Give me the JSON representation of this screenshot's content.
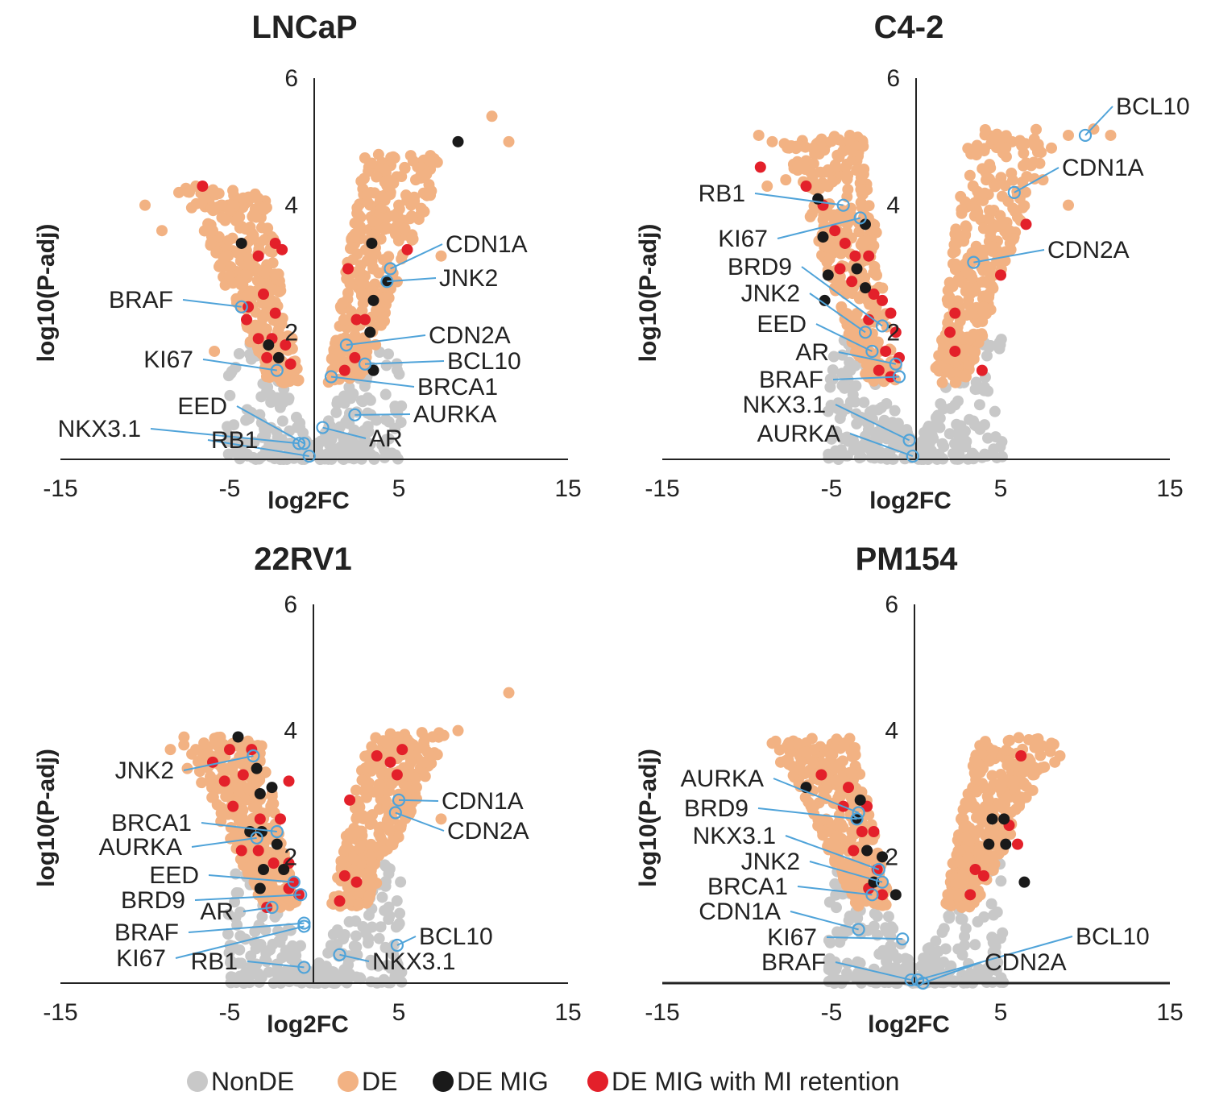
{
  "legend": {
    "items": [
      {
        "label": "NonDE",
        "color": "#c8c8c8"
      },
      {
        "label": "DE",
        "color": "#f2b283"
      },
      {
        "label": "DE MIG",
        "color": "#1a1a1a"
      },
      {
        "label": "DE MIG with MI retention",
        "color": "#e3202a"
      }
    ]
  },
  "colors": {
    "nonde": "#c8c8c8",
    "de": "#f2b283",
    "demig": "#1a1a1a",
    "demig_mi": "#e3202a",
    "highlight": "#4fa3d9",
    "axis": "#222222"
  },
  "chart_data": [
    {
      "type": "scatter",
      "title": "LNCaP",
      "xlabel": "log2FC",
      "ylabel": "log10(P-adj)",
      "xlim": [
        -15,
        15
      ],
      "ylim": [
        0,
        6
      ],
      "xticks": [
        -15,
        -5,
        5,
        15
      ],
      "yticks": [
        2,
        4,
        6
      ],
      "de_left_top": 4.3,
      "de_right_top": 4.8,
      "de_min_x": 0.8,
      "points": {
        "de_mig": [
          [
            -4.3,
            3.4
          ],
          [
            -2.7,
            1.8
          ],
          [
            -2.1,
            1.6
          ],
          [
            3.4,
            3.4
          ],
          [
            4.3,
            2.8
          ],
          [
            3.5,
            2.5
          ],
          [
            3.3,
            2.0
          ],
          [
            3.5,
            1.4
          ],
          [
            8.5,
            5.0
          ]
        ],
        "de_mig_mi": [
          [
            -6.6,
            4.3
          ],
          [
            -3.3,
            3.2
          ],
          [
            -2.3,
            3.4
          ],
          [
            -1.9,
            3.3
          ],
          [
            -3.9,
            2.4
          ],
          [
            -3.0,
            2.6
          ],
          [
            -4.0,
            2.2
          ],
          [
            -2.3,
            2.3
          ],
          [
            -2.5,
            1.9
          ],
          [
            -3.3,
            1.9
          ],
          [
            -1.7,
            1.8
          ],
          [
            -1.4,
            1.5
          ],
          [
            -2.8,
            1.6
          ],
          [
            2.0,
            3.0
          ],
          [
            2.5,
            2.2
          ],
          [
            3.0,
            2.2
          ],
          [
            1.8,
            1.4
          ],
          [
            2.4,
            1.6
          ],
          [
            5.5,
            3.3
          ]
        ],
        "de_extra": [
          [
            10.5,
            5.4
          ],
          [
            11.5,
            5.0
          ],
          [
            6.0,
            4.4
          ],
          [
            5.0,
            4.0
          ],
          [
            6.5,
            3.9
          ],
          [
            7.5,
            3.2
          ],
          [
            -10.0,
            4.0
          ],
          [
            -8.0,
            4.2
          ],
          [
            -7.0,
            4.3
          ],
          [
            -5.5,
            4.0
          ],
          [
            -9.0,
            3.6
          ],
          [
            -6.0,
            3.6
          ],
          [
            -5.9,
            1.7
          ]
        ]
      },
      "annotations": [
        {
          "label": "CDN1A",
          "px": 4.5,
          "py": 3.0
        },
        {
          "label": "JNK2",
          "px": 4.3,
          "py": 2.8
        },
        {
          "label": "BRAF",
          "px": -4.3,
          "py": 2.4
        },
        {
          "label": "CDN2A",
          "px": 1.9,
          "py": 1.8
        },
        {
          "label": "BCL10",
          "px": 3.0,
          "py": 1.5
        },
        {
          "label": "BRCA1",
          "px": 1.0,
          "py": 1.3
        },
        {
          "label": "KI67",
          "px": -2.2,
          "py": 1.4
        },
        {
          "label": "AURKA",
          "px": 2.4,
          "py": 0.7
        },
        {
          "label": "EED",
          "px": -0.6,
          "py": 0.25
        },
        {
          "label": "AR",
          "px": 0.5,
          "py": 0.5
        },
        {
          "label": "NKX3.1",
          "px": -0.9,
          "py": 0.25
        },
        {
          "label": "RB1",
          "px": -0.3,
          "py": 0.05
        }
      ]
    },
    {
      "type": "scatter",
      "title": "C4-2",
      "xlabel": "log2FC",
      "ylabel": "log10(P-adj)",
      "xlim": [
        -15,
        15
      ],
      "ylim": [
        0,
        6
      ],
      "xticks": [
        -15,
        -5,
        5,
        15
      ],
      "yticks": [
        2,
        4,
        6
      ],
      "de_left_top": 5.1,
      "de_right_top": 5.2,
      "de_min_x": 1.0,
      "points": {
        "de_mig": [
          [
            -5.5,
            3.5
          ],
          [
            -3.0,
            3.7
          ],
          [
            -5.2,
            2.9
          ],
          [
            -3.5,
            3.0
          ],
          [
            -5.4,
            2.5
          ],
          [
            -3.0,
            2.7
          ],
          [
            -5.8,
            4.1
          ]
        ],
        "de_mig_mi": [
          [
            -9.2,
            4.6
          ],
          [
            -6.5,
            4.3
          ],
          [
            -5.5,
            4.0
          ],
          [
            -4.8,
            3.6
          ],
          [
            -4.2,
            3.4
          ],
          [
            -3.6,
            3.2
          ],
          [
            -4.5,
            3.0
          ],
          [
            -2.8,
            3.2
          ],
          [
            -3.8,
            2.8
          ],
          [
            -2.5,
            2.6
          ],
          [
            -2.0,
            2.5
          ],
          [
            -1.5,
            2.3
          ],
          [
            -2.8,
            2.2
          ],
          [
            -1.2,
            2.0
          ],
          [
            -1.8,
            1.7
          ],
          [
            -1.0,
            1.6
          ],
          [
            -2.2,
            1.4
          ],
          [
            -1.5,
            1.3
          ],
          [
            6.5,
            3.7
          ],
          [
            5.0,
            2.9
          ],
          [
            2.3,
            2.3
          ],
          [
            2.0,
            2.0
          ],
          [
            2.3,
            1.7
          ],
          [
            3.9,
            1.4
          ]
        ],
        "de_extra": [
          [
            -9.3,
            5.1
          ],
          [
            -8.5,
            5.0
          ],
          [
            -7.5,
            4.9
          ],
          [
            -6.5,
            4.7
          ],
          [
            -8.8,
            4.3
          ],
          [
            -7.7,
            4.4
          ],
          [
            10.5,
            5.2
          ],
          [
            11.5,
            5.1
          ],
          [
            9.0,
            5.1
          ],
          [
            8.0,
            4.9
          ],
          [
            7.5,
            4.4
          ],
          [
            9.0,
            4.0
          ],
          [
            5.3,
            4.9
          ]
        ]
      },
      "annotations": [
        {
          "label": "BCL10",
          "px": 10.0,
          "py": 5.1
        },
        {
          "label": "CDN1A",
          "px": 5.8,
          "py": 4.2
        },
        {
          "label": "RB1",
          "px": -4.3,
          "py": 4.0
        },
        {
          "label": "CDN2A",
          "px": 3.4,
          "py": 3.1
        },
        {
          "label": "KI67",
          "px": -3.3,
          "py": 3.8
        },
        {
          "label": "BRD9",
          "px": -2.0,
          "py": 2.1
        },
        {
          "label": "JNK2",
          "px": -3.0,
          "py": 2.0
        },
        {
          "label": "EED",
          "px": -2.6,
          "py": 1.7
        },
        {
          "label": "AR",
          "px": -1.2,
          "py": 1.5
        },
        {
          "label": "BRAF",
          "px": -1.0,
          "py": 1.3
        },
        {
          "label": "NKX3.1",
          "px": -0.4,
          "py": 0.3
        },
        {
          "label": "AURKA",
          "px": -0.2,
          "py": 0.05
        }
      ]
    },
    {
      "type": "scatter",
      "title": "22RV1",
      "xlabel": "log2FC",
      "ylabel": "log10(P-adj)",
      "xlim": [
        -15,
        15
      ],
      "ylim": [
        0,
        6
      ],
      "xticks": [
        -15,
        -5,
        5,
        15
      ],
      "yticks": [
        2,
        4,
        6
      ],
      "de_left_top": 3.9,
      "de_right_top": 4.0,
      "de_min_x": 1.0,
      "points": {
        "de_mig": [
          [
            -4.5,
            3.9
          ],
          [
            -3.4,
            3.4
          ],
          [
            -3.2,
            3.0
          ],
          [
            -2.5,
            3.1
          ],
          [
            -3.8,
            2.4
          ],
          [
            -3.1,
            2.4
          ],
          [
            -2.2,
            2.2
          ],
          [
            -3.0,
            1.8
          ],
          [
            -1.8,
            1.8
          ],
          [
            -3.2,
            1.5
          ]
        ],
        "de_mig_mi": [
          [
            -5.0,
            3.7
          ],
          [
            -3.7,
            3.7
          ],
          [
            -6.0,
            3.5
          ],
          [
            -5.3,
            3.2
          ],
          [
            -4.2,
            3.3
          ],
          [
            -4.8,
            2.8
          ],
          [
            -3.2,
            2.6
          ],
          [
            -2.0,
            2.6
          ],
          [
            -1.5,
            3.2
          ],
          [
            -4.3,
            2.1
          ],
          [
            -3.3,
            2.1
          ],
          [
            -2.4,
            1.9
          ],
          [
            -1.5,
            1.9
          ],
          [
            -1.2,
            1.6
          ],
          [
            -0.9,
            1.4
          ],
          [
            -2.8,
            1.2
          ],
          [
            -1.5,
            1.5
          ],
          [
            5.2,
            3.7
          ],
          [
            4.5,
            3.5
          ],
          [
            4.9,
            3.3
          ],
          [
            3.7,
            3.6
          ],
          [
            2.1,
            2.9
          ],
          [
            1.8,
            1.7
          ],
          [
            2.5,
            1.6
          ],
          [
            1.5,
            1.3
          ]
        ],
        "de_extra": [
          [
            11.5,
            4.6
          ],
          [
            8.5,
            4.0
          ],
          [
            7.0,
            3.9
          ],
          [
            5.7,
            3.8
          ],
          [
            6.5,
            3.5
          ],
          [
            -8.5,
            3.7
          ],
          [
            -7.0,
            3.7
          ],
          [
            -5.7,
            3.6
          ],
          [
            -7.5,
            3.4
          ],
          [
            7.5,
            2.6
          ]
        ]
      },
      "annotations": [
        {
          "label": "JNK2",
          "px": -3.6,
          "py": 3.6
        },
        {
          "label": "CDN1A",
          "px": 5.0,
          "py": 2.9
        },
        {
          "label": "CDN2A",
          "px": 4.8,
          "py": 2.7
        },
        {
          "label": "BRCA1",
          "px": -2.2,
          "py": 2.4
        },
        {
          "label": "AURKA",
          "px": -3.4,
          "py": 2.3
        },
        {
          "label": "EED",
          "px": -1.2,
          "py": 1.6
        },
        {
          "label": "BRD9",
          "px": -0.8,
          "py": 1.4
        },
        {
          "label": "AR",
          "px": -2.5,
          "py": 1.2
        },
        {
          "label": "BRAF",
          "px": -0.6,
          "py": 0.95
        },
        {
          "label": "KI67",
          "px": -0.6,
          "py": 0.9
        },
        {
          "label": "BCL10",
          "px": 4.9,
          "py": 0.6
        },
        {
          "label": "NKX3.1",
          "px": 1.5,
          "py": 0.45
        },
        {
          "label": "RB1",
          "px": -0.6,
          "py": 0.25
        }
      ]
    },
    {
      "type": "scatter",
      "title": "PM154",
      "xlabel": "log2FC",
      "ylabel": "log10(P-adj)",
      "xlim": [
        -15,
        15
      ],
      "ylim": [
        0,
        6
      ],
      "xticks": [
        -15,
        -5,
        5,
        15
      ],
      "yticks": [
        2,
        4,
        6
      ],
      "de_left_top": 3.9,
      "de_right_top": 3.9,
      "de_min_x": 1.5,
      "points": {
        "de_mig": [
          [
            -6.5,
            3.1
          ],
          [
            -3.3,
            2.9
          ],
          [
            -3.5,
            2.6
          ],
          [
            -2.9,
            2.1
          ],
          [
            -2.0,
            2.0
          ],
          [
            -2.5,
            1.6
          ],
          [
            -1.2,
            1.4
          ],
          [
            4.5,
            2.6
          ],
          [
            4.3,
            2.2
          ],
          [
            5.2,
            2.6
          ],
          [
            5.3,
            2.2
          ],
          [
            6.4,
            1.6
          ]
        ],
        "de_mig_mi": [
          [
            -5.6,
            3.3
          ],
          [
            -4.0,
            3.1
          ],
          [
            -4.3,
            2.8
          ],
          [
            -2.9,
            2.8
          ],
          [
            -2.5,
            2.4
          ],
          [
            -3.2,
            2.4
          ],
          [
            -3.7,
            2.1
          ],
          [
            -2.3,
            1.8
          ],
          [
            -2.0,
            1.4
          ],
          [
            -2.8,
            1.5
          ],
          [
            3.5,
            1.8
          ],
          [
            4.0,
            1.7
          ],
          [
            3.2,
            1.4
          ],
          [
            6.2,
            3.6
          ],
          [
            5.5,
            2.5
          ],
          [
            6.0,
            2.2
          ]
        ],
        "de_extra": [
          [
            -8.5,
            3.8
          ],
          [
            -7.0,
            3.8
          ],
          [
            -6.0,
            3.7
          ],
          [
            -8.0,
            3.5
          ],
          [
            -6.8,
            3.5
          ],
          [
            -5.0,
            3.6
          ],
          [
            8.0,
            3.8
          ],
          [
            7.2,
            3.8
          ],
          [
            8.5,
            3.6
          ],
          [
            6.9,
            3.3
          ],
          [
            8.2,
            3.5
          ],
          [
            5.8,
            3.2
          ]
        ]
      },
      "annotations": [
        {
          "label": "AURKA",
          "px": -3.4,
          "py": 2.7
        },
        {
          "label": "BRD9",
          "px": -3.5,
          "py": 2.6
        },
        {
          "label": "NKX3.1",
          "px": -2.2,
          "py": 1.8
        },
        {
          "label": "JNK2",
          "px": -2.0,
          "py": 1.6
        },
        {
          "label": "BRCA1",
          "px": -2.6,
          "py": 1.4
        },
        {
          "label": "CDN1A",
          "px": -3.4,
          "py": 0.85
        },
        {
          "label": "KI67",
          "px": -0.8,
          "py": 0.7
        },
        {
          "label": "BCL10",
          "px": 0.1,
          "py": 0.05
        },
        {
          "label": "CDN2A",
          "px": 0.4,
          "py": 0.0
        },
        {
          "label": "BRAF",
          "px": -0.3,
          "py": 0.05
        }
      ]
    }
  ]
}
